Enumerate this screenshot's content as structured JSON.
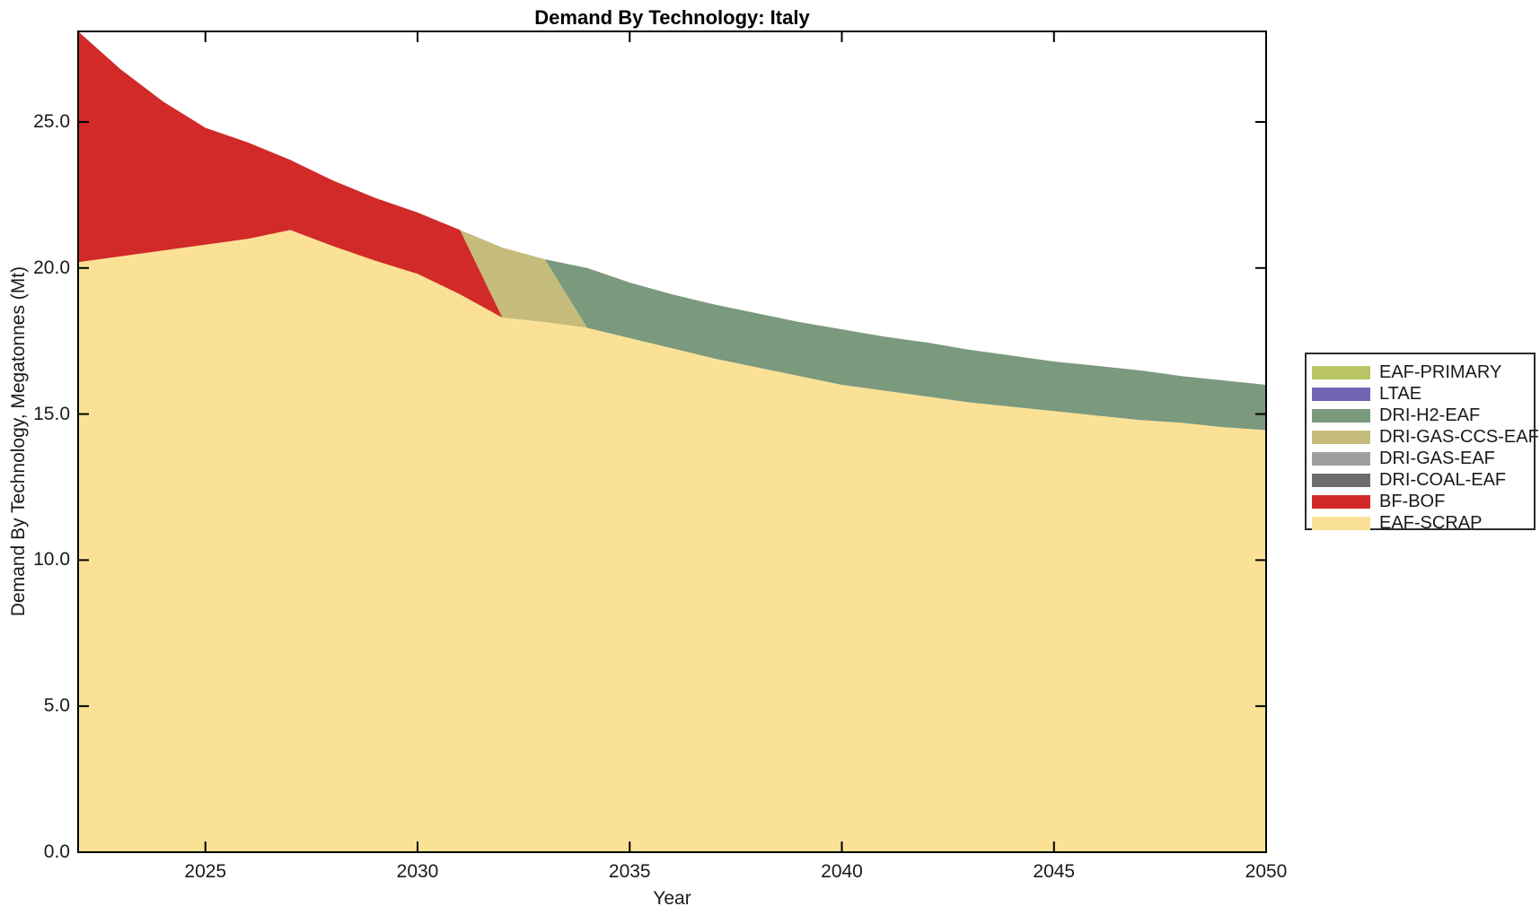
{
  "chart": {
    "title": "Demand By Technology: Italy",
    "xlabel": "Year",
    "ylabel": "Demand By Technology, Megatonnes (Mt)"
  },
  "chart_data": {
    "type": "area",
    "subtype": "stacked",
    "title": "Demand By Technology: Italy",
    "xlabel": "Year",
    "ylabel": "Demand By Technology, Megatonnes (Mt)",
    "grid": false,
    "legend_position": "outside-right",
    "xlim": [
      2022,
      2050
    ],
    "ylim": [
      0,
      28.1
    ],
    "x_tick_values": [
      2025,
      2030,
      2035,
      2040,
      2045,
      2050
    ],
    "x_tick_labels": [
      "2025",
      "2030",
      "2035",
      "2040",
      "2045",
      "2050"
    ],
    "y_tick_values": [
      0,
      5,
      10,
      15,
      20,
      25
    ],
    "y_tick_labels": [
      "0.0",
      "5.0",
      "10.0",
      "15.0",
      "20.0",
      "25.0"
    ],
    "x": [
      2022,
      2023,
      2024,
      2025,
      2026,
      2027,
      2028,
      2029,
      2030,
      2031,
      2032,
      2033,
      2034,
      2035,
      2036,
      2037,
      2038,
      2039,
      2040,
      2041,
      2042,
      2043,
      2044,
      2045,
      2046,
      2047,
      2048,
      2049,
      2050
    ],
    "stack_order": "bottom-to-top",
    "series": [
      {
        "name": "EAF-SCRAP",
        "color": "#FBE196",
        "values": [
          20.2,
          20.4,
          20.6,
          20.8,
          21.0,
          21.3,
          20.75,
          20.25,
          19.8,
          19.1,
          18.3,
          18.15,
          17.95,
          17.6,
          17.25,
          16.9,
          16.6,
          16.3,
          16.0,
          15.8,
          15.6,
          15.4,
          15.25,
          15.1,
          14.95,
          14.8,
          14.7,
          14.55,
          14.45
        ]
      },
      {
        "name": "BF-BOF",
        "color": "#D22A28",
        "values": [
          7.9,
          6.4,
          5.1,
          4.0,
          3.3,
          2.4,
          2.25,
          2.15,
          2.1,
          2.2,
          0,
          0,
          0,
          0,
          0,
          0,
          0,
          0,
          0,
          0,
          0,
          0,
          0,
          0,
          0,
          0,
          0,
          0,
          0
        ]
      },
      {
        "name": "DRI-COAL-EAF",
        "color": "#6E6C6C",
        "values": [
          0,
          0,
          0,
          0,
          0,
          0,
          0,
          0,
          0,
          0,
          0,
          0,
          0,
          0,
          0,
          0,
          0,
          0,
          0,
          0,
          0,
          0,
          0,
          0,
          0,
          0,
          0,
          0,
          0
        ]
      },
      {
        "name": "DRI-GAS-EAF",
        "color": "#A09F9D",
        "values": [
          0,
          0,
          0,
          0,
          0,
          0,
          0,
          0,
          0,
          0,
          0,
          0,
          0,
          0,
          0,
          0,
          0,
          0,
          0,
          0,
          0,
          0,
          0,
          0,
          0,
          0,
          0,
          0,
          0
        ]
      },
      {
        "name": "DRI-GAS-CCS-EAF",
        "color": "#C5BC7B",
        "values": [
          0,
          0,
          0,
          0,
          0,
          0,
          0,
          0,
          0,
          0,
          2.4,
          2.15,
          0,
          0,
          0,
          0,
          0,
          0,
          0,
          0,
          0,
          0,
          0,
          0,
          0,
          0,
          0,
          0,
          0
        ]
      },
      {
        "name": "DRI-H2-EAF",
        "color": "#7A997D",
        "values": [
          0,
          0,
          0,
          0,
          0,
          0,
          0,
          0,
          0,
          0,
          0,
          0,
          2.05,
          1.9,
          1.85,
          1.85,
          1.85,
          1.85,
          1.9,
          1.85,
          1.85,
          1.8,
          1.75,
          1.7,
          1.7,
          1.7,
          1.6,
          1.6,
          1.55
        ]
      },
      {
        "name": "LTAE",
        "color": "#7166B5",
        "values": [
          0,
          0,
          0,
          0,
          0,
          0,
          0,
          0,
          0,
          0,
          0,
          0,
          0,
          0,
          0,
          0,
          0,
          0,
          0,
          0,
          0,
          0,
          0,
          0,
          0,
          0,
          0,
          0,
          0
        ]
      },
      {
        "name": "EAF-PRIMARY",
        "color": "#BBC565",
        "values": [
          0,
          0,
          0,
          0,
          0,
          0,
          0,
          0,
          0,
          0,
          0,
          0,
          0,
          0,
          0,
          0,
          0,
          0,
          0,
          0,
          0,
          0,
          0,
          0,
          0,
          0,
          0,
          0,
          0
        ]
      }
    ]
  }
}
